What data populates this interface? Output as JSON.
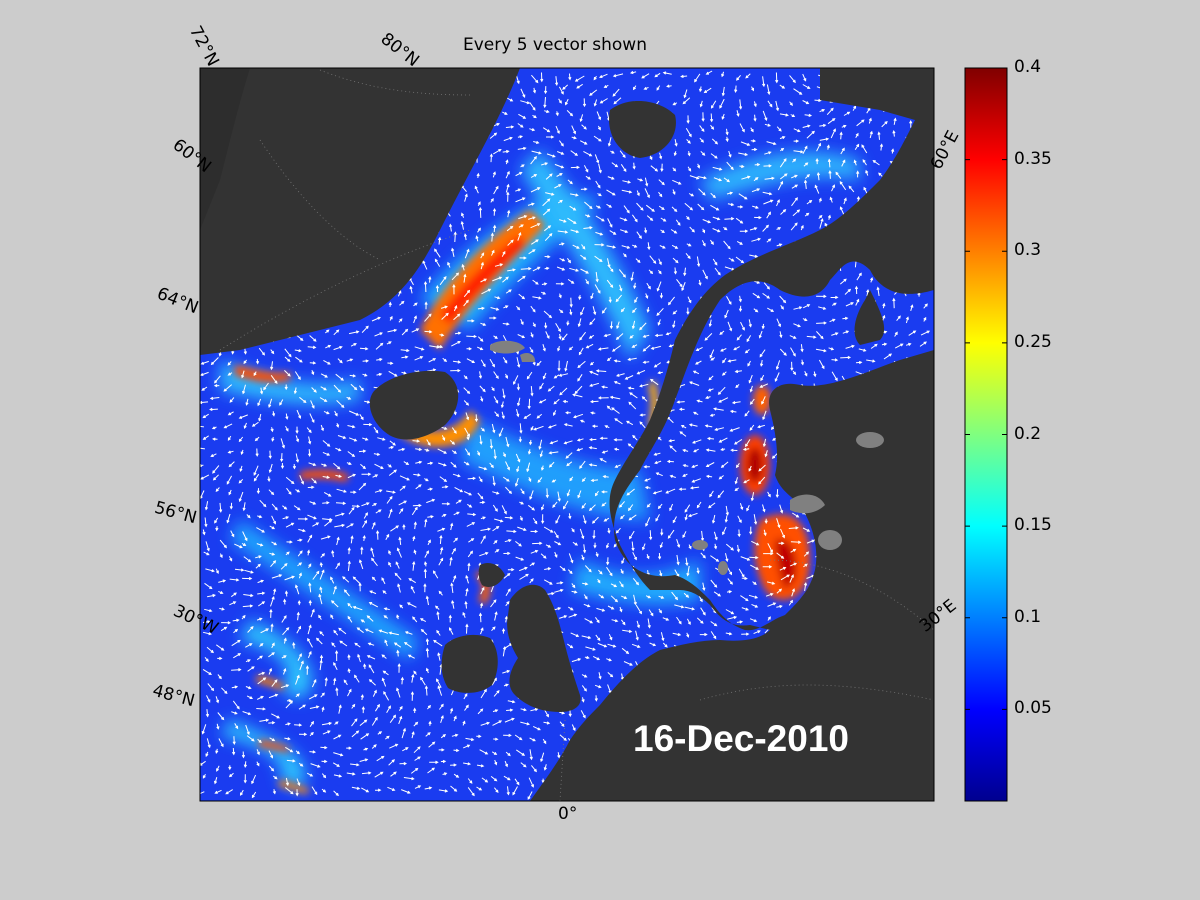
{
  "title": "Every 5 vector shown",
  "date": "16-Dec-2010",
  "colormap": "jet",
  "colorbar": {
    "min": 0,
    "max": 0.4,
    "ticks": [
      "0.4",
      "0.35",
      "0.3",
      "0.25",
      "0.2",
      "0.15",
      "0.1",
      "0.05"
    ]
  },
  "graticule_labels": {
    "lat_72": "72°N",
    "lat_80": "80°N",
    "lat_60": "60°N",
    "lat_64": "64°N",
    "lat_56": "56°N",
    "lat_48": "48°N",
    "lon_30w": "30°W",
    "lon_0": "0°",
    "lon_30e": "30°E",
    "lon_60e": "60°E"
  },
  "colors": {
    "land": "#333333",
    "lakes": "#808080",
    "figure_background": "#cccccc",
    "vectors": "#ffffff"
  }
}
